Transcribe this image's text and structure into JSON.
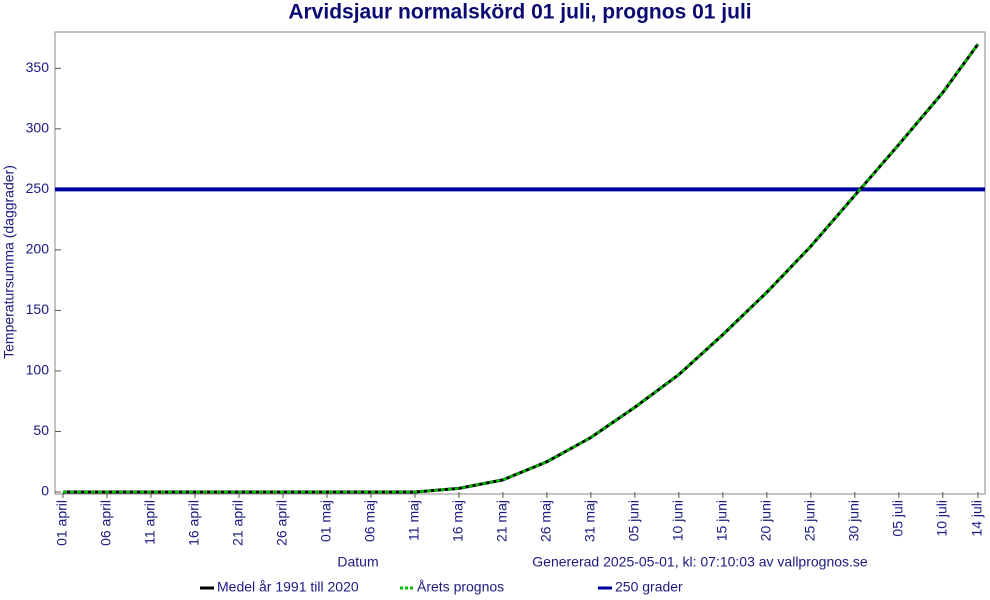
{
  "chart_data": {
    "type": "line",
    "title": "Arvidsjaur normalskörd 01 juli, prognos 01 juli",
    "x_label": "Datum",
    "y_label": "Temperatursumma (daggrader)",
    "annotation": "Genererad 2025-05-01, kl: 07:10:03 av vallprognos.se",
    "categories": [
      "01 april",
      "06 april",
      "11 april",
      "16 april",
      "21 april",
      "26 april",
      "01 maj",
      "06 maj",
      "11 maj",
      "16 maj",
      "21 maj",
      "26 maj",
      "31 maj",
      "05 juni",
      "10 juni",
      "15 juni",
      "20 juni",
      "25 juni",
      "30 juni",
      "05 juli",
      "10 juli",
      "14 juli"
    ],
    "series": [
      {
        "name": "Medel år 1991 till 2020",
        "color": "#000000",
        "dash": false,
        "values": [
          0,
          0,
          0,
          0,
          0,
          0,
          0,
          0,
          0,
          3,
          10,
          25,
          45,
          70,
          97,
          130,
          165,
          203,
          245,
          287,
          330,
          370
        ]
      },
      {
        "name": "Årets prognos",
        "color": "#00bb00",
        "dash": true,
        "values": [
          0,
          0,
          0,
          0,
          0,
          0,
          0,
          0,
          0,
          3,
          10,
          25,
          45,
          70,
          97,
          130,
          165,
          203,
          245,
          287,
          330,
          370
        ]
      }
    ],
    "threshold": {
      "name": "250 grader",
      "value": 250,
      "color": "#0000a0"
    },
    "ylim": [
      0,
      380
    ],
    "yticks": [
      0,
      50,
      100,
      150,
      200,
      250,
      300,
      350
    ]
  }
}
